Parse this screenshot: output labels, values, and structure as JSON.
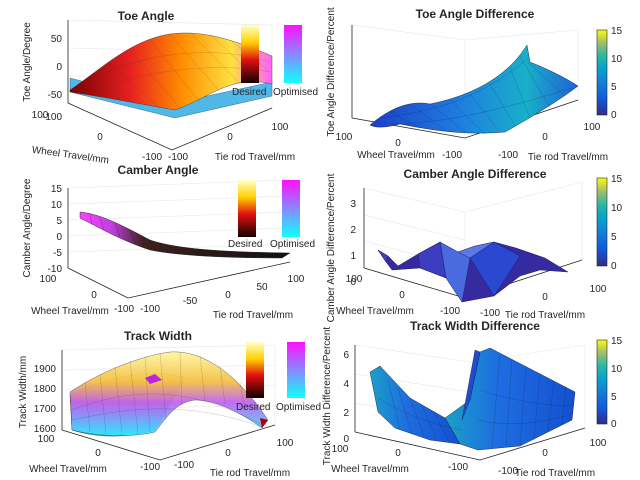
{
  "chart_data": [
    {
      "id": "toe",
      "type": "surface",
      "title": "Toe Angle",
      "xlabel": "Wheel Travel/mm",
      "ylabel": "Tie rod Travel/mm",
      "zlabel": "Toe Angle/Degree",
      "x_ticks": [
        "100",
        "0",
        "-100"
      ],
      "y_ticks": [
        "-100",
        "0",
        "100"
      ],
      "z_ticks": [
        "50",
        "0",
        "-50",
        "-100"
      ],
      "zlim": [
        -100,
        50
      ],
      "legend": [
        "Desired",
        "Optimised"
      ],
      "colormap_pair": "hot / cool"
    },
    {
      "id": "toe_diff",
      "type": "surface",
      "title": "Toe Angle Difference",
      "xlabel": "Wheel Travel/mm",
      "ylabel": "Tie rod Travel/mm",
      "zlabel": "Toe Angle Difference/Percent",
      "x_ticks": [
        "100",
        "0",
        "-100"
      ],
      "y_ticks": [
        "-100",
        "0",
        "100"
      ],
      "colorbar_ticks": [
        "15",
        "10",
        "5",
        "0"
      ],
      "colorbar_range": [
        0,
        15
      ]
    },
    {
      "id": "camber",
      "type": "surface",
      "title": "Camber Angle",
      "xlabel": "Wheel Travel/mm",
      "ylabel": "Tie rod Travel/mm",
      "zlabel": "Camber Angle/Degree",
      "x_ticks": [
        "100",
        "0",
        "-100"
      ],
      "y_ticks": [
        "-100",
        "-50",
        "0",
        "50",
        "100"
      ],
      "z_ticks": [
        "15",
        "10",
        "5",
        "0",
        "-5",
        "-10"
      ],
      "zlim": [
        -10,
        15
      ],
      "legend": [
        "Desired",
        "Optimised"
      ],
      "colormap_pair": "hot / cool"
    },
    {
      "id": "camber_diff",
      "type": "surface",
      "title": "Camber Angle Difference",
      "xlabel": "Wheel Travel/mm",
      "ylabel": "Tie rod Travel/mm",
      "zlabel": "Camber Angle Difference/Percent",
      "x_ticks": [
        "100",
        "0",
        "-100"
      ],
      "y_ticks": [
        "-100",
        "0",
        "100"
      ],
      "z_ticks": [
        "3",
        "2",
        "1",
        "0"
      ],
      "zlim": [
        0,
        3
      ],
      "colorbar_ticks": [
        "15",
        "10",
        "5",
        "0"
      ],
      "colorbar_range": [
        0,
        15
      ]
    },
    {
      "id": "track",
      "type": "surface",
      "title": "Track Width",
      "xlabel": "Wheel Travel/mm",
      "ylabel": "Tie rod Travel/mm",
      "zlabel": "Track Width/mm",
      "x_ticks": [
        "100",
        "0",
        "-100"
      ],
      "y_ticks": [
        "-100",
        "0",
        "100"
      ],
      "z_ticks": [
        "1900",
        "1800",
        "1700",
        "1600"
      ],
      "zlim": [
        1600,
        1900
      ],
      "legend": [
        "Desired",
        "Optimised"
      ],
      "colormap_pair": "hot / cool"
    },
    {
      "id": "track_diff",
      "type": "surface",
      "title": "Track Width Difference",
      "xlabel": "Wheel Travel/mm",
      "ylabel": "Tie rod Travel/mm",
      "zlabel": "Track Width Difference/Percent",
      "x_ticks": [
        "100",
        "0",
        "-100"
      ],
      "y_ticks": [
        "-100",
        "0",
        "100"
      ],
      "z_ticks": [
        "6",
        "4",
        "2",
        "0"
      ],
      "zlim": [
        0,
        6
      ],
      "colorbar_ticks": [
        "15",
        "10",
        "5",
        "0"
      ],
      "colorbar_range": [
        0,
        15
      ]
    }
  ]
}
